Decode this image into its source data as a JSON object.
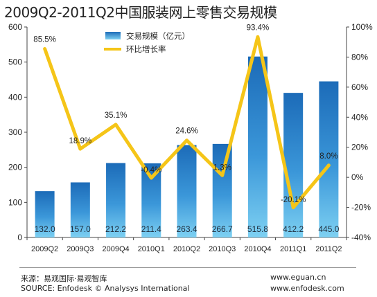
{
  "title": "2009Q2-2011Q2中国服装网上零售交易规模",
  "chart_data": {
    "type": "bar",
    "categories": [
      "2009Q2",
      "2009Q3",
      "2009Q4",
      "2010Q1",
      "2010Q2",
      "2010Q3",
      "2010Q4",
      "2011Q1",
      "2011Q2"
    ],
    "series": [
      {
        "name": "交易规模（亿元）",
        "type": "bar",
        "axis": "left",
        "values": [
          132.0,
          157.0,
          212.2,
          211.4,
          263.4,
          266.7,
          515.8,
          412.2,
          445.0
        ],
        "labels": [
          "132.0",
          "157.0",
          "212.2",
          "211.4",
          "263.4",
          "266.7",
          "515.8",
          "412.2",
          "445.0"
        ],
        "color": "#2e7bc4"
      },
      {
        "name": "环比增长率",
        "type": "line",
        "axis": "right",
        "values": [
          85.5,
          18.9,
          35.1,
          -0.4,
          24.6,
          1.3,
          93.4,
          -20.1,
          8.0
        ],
        "labels": [
          "85.5%",
          "18.9%",
          "35.1%",
          "-0.4%",
          "24.6%",
          "1.3%",
          "93.4%",
          "-20.1%",
          "8.0%"
        ],
        "color": "#f5c518"
      }
    ],
    "left_axis": {
      "ylim": [
        0,
        600
      ],
      "ticks": [
        0,
        100,
        200,
        300,
        400,
        500,
        600
      ],
      "tick_labels": [
        "0",
        "100",
        "200",
        "300",
        "400",
        "500",
        "600"
      ]
    },
    "right_axis": {
      "ylim": [
        -40,
        100
      ],
      "ticks": [
        -40,
        -20,
        0,
        20,
        40,
        60,
        80,
        100
      ],
      "tick_labels": [
        "-40%",
        "-20%",
        "0%",
        "20%",
        "40%",
        "60%",
        "80%",
        "100%"
      ]
    },
    "legend_position": "top-center",
    "grid": false
  },
  "footer": {
    "source_cn": "来源：易观国际·易观智库",
    "source_en": "SOURCE: Enfodesk © Analysys International",
    "site1": "www.eguan.cn",
    "site2": "www.enfodesk.com"
  }
}
